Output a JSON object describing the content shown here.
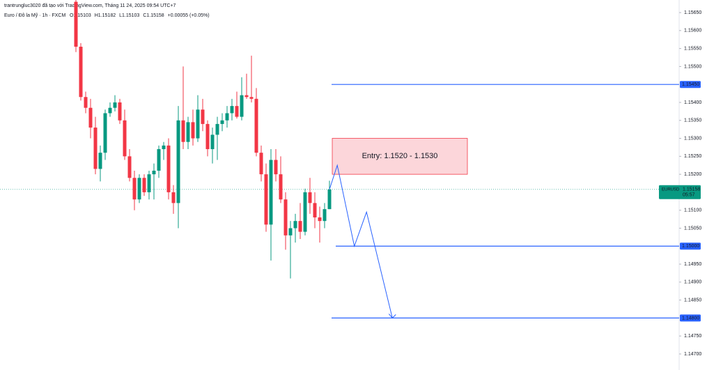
{
  "header": {
    "credit": "trantrungluc3020 đã tạo với TradingView.com, Tháng 11 24, 2025 09:54 UTC+7",
    "symbol": "Euro / Đô la Mỹ · 1h · FXCM",
    "ohlc": [
      "O1.15103",
      "H1.15182",
      "L1.15103",
      "C1.15158",
      "+0.00055 (+0.05%)"
    ]
  },
  "chart_data": {
    "type": "candlestick",
    "ylim": [
      1.14667,
      1.15685
    ],
    "yticks": [
      {
        "value": 1.1565,
        "label": "1.15650"
      },
      {
        "value": 1.156,
        "label": "1.15600"
      },
      {
        "value": 1.1555,
        "label": "1.15550"
      },
      {
        "value": 1.155,
        "label": "1.15500"
      },
      {
        "value": 1.154,
        "label": "1.15400"
      },
      {
        "value": 1.1535,
        "label": "1.15350"
      },
      {
        "value": 1.153,
        "label": "1.15300"
      },
      {
        "value": 1.1525,
        "label": "1.15250"
      },
      {
        "value": 1.152,
        "label": "1.15200"
      },
      {
        "value": 1.151,
        "label": "1.15100"
      },
      {
        "value": 1.1505,
        "label": "1.15050"
      },
      {
        "value": 1.1495,
        "label": "1.14950"
      },
      {
        "value": 1.149,
        "label": "1.14900"
      },
      {
        "value": 1.1485,
        "label": "1.14850"
      },
      {
        "value": 1.1475,
        "label": "1.14750"
      },
      {
        "value": 1.147,
        "label": "1.14700"
      }
    ],
    "up_color": "#089981",
    "down_color": "#f23645",
    "candles": [
      {
        "o": 1.1568,
        "h": 1.1569,
        "l": 1.1554,
        "c": 1.15555
      },
      {
        "o": 1.15555,
        "h": 1.15565,
        "l": 1.15405,
        "c": 1.15415
      },
      {
        "o": 1.15415,
        "h": 1.1543,
        "l": 1.1537,
        "c": 1.15385
      },
      {
        "o": 1.15385,
        "h": 1.1541,
        "l": 1.153,
        "c": 1.1533
      },
      {
        "o": 1.1533,
        "h": 1.1536,
        "l": 1.152,
        "c": 1.15215
      },
      {
        "o": 1.15215,
        "h": 1.1528,
        "l": 1.1518,
        "c": 1.1526
      },
      {
        "o": 1.1526,
        "h": 1.1538,
        "l": 1.1524,
        "c": 1.1537
      },
      {
        "o": 1.1537,
        "h": 1.154,
        "l": 1.1536,
        "c": 1.15385
      },
      {
        "o": 1.15385,
        "h": 1.1542,
        "l": 1.15375,
        "c": 1.154
      },
      {
        "o": 1.154,
        "h": 1.1541,
        "l": 1.1534,
        "c": 1.1535
      },
      {
        "o": 1.1535,
        "h": 1.1538,
        "l": 1.1524,
        "c": 1.1525
      },
      {
        "o": 1.1525,
        "h": 1.1527,
        "l": 1.1518,
        "c": 1.1519
      },
      {
        "o": 1.1519,
        "h": 1.1521,
        "l": 1.151,
        "c": 1.1513
      },
      {
        "o": 1.1513,
        "h": 1.152,
        "l": 1.1512,
        "c": 1.1519
      },
      {
        "o": 1.1519,
        "h": 1.152,
        "l": 1.1514,
        "c": 1.1515
      },
      {
        "o": 1.1515,
        "h": 1.1521,
        "l": 1.1513,
        "c": 1.152
      },
      {
        "o": 1.152,
        "h": 1.1523,
        "l": 1.1513,
        "c": 1.1521
      },
      {
        "o": 1.1521,
        "h": 1.1528,
        "l": 1.1519,
        "c": 1.1527
      },
      {
        "o": 1.1527,
        "h": 1.1529,
        "l": 1.1524,
        "c": 1.1528
      },
      {
        "o": 1.1528,
        "h": 1.153,
        "l": 1.1513,
        "c": 1.1515
      },
      {
        "o": 1.1515,
        "h": 1.1517,
        "l": 1.1509,
        "c": 1.1512
      },
      {
        "o": 1.1512,
        "h": 1.1539,
        "l": 1.1505,
        "c": 1.1535
      },
      {
        "o": 1.1535,
        "h": 1.155,
        "l": 1.1527,
        "c": 1.1529
      },
      {
        "o": 1.1529,
        "h": 1.1536,
        "l": 1.1527,
        "c": 1.15345
      },
      {
        "o": 1.15345,
        "h": 1.1538,
        "l": 1.1528,
        "c": 1.153
      },
      {
        "o": 1.153,
        "h": 1.1542,
        "l": 1.1529,
        "c": 1.1538
      },
      {
        "o": 1.1538,
        "h": 1.1541,
        "l": 1.1532,
        "c": 1.1534
      },
      {
        "o": 1.1534,
        "h": 1.1535,
        "l": 1.1525,
        "c": 1.1527
      },
      {
        "o": 1.1527,
        "h": 1.1533,
        "l": 1.1523,
        "c": 1.1531
      },
      {
        "o": 1.1531,
        "h": 1.1536,
        "l": 1.1524,
        "c": 1.1534
      },
      {
        "o": 1.1534,
        "h": 1.1537,
        "l": 1.1532,
        "c": 1.1535
      },
      {
        "o": 1.1535,
        "h": 1.1539,
        "l": 1.1533,
        "c": 1.1537
      },
      {
        "o": 1.1537,
        "h": 1.1541,
        "l": 1.1535,
        "c": 1.1539
      },
      {
        "o": 1.1539,
        "h": 1.1543,
        "l": 1.15355,
        "c": 1.1536
      },
      {
        "o": 1.1536,
        "h": 1.1547,
        "l": 1.1535,
        "c": 1.1542
      },
      {
        "o": 1.1542,
        "h": 1.1548,
        "l": 1.1541,
        "c": 1.15415
      },
      {
        "o": 1.15415,
        "h": 1.1553,
        "l": 1.154,
        "c": 1.1541
      },
      {
        "o": 1.1541,
        "h": 1.1544,
        "l": 1.1525,
        "c": 1.1526
      },
      {
        "o": 1.1526,
        "h": 1.1528,
        "l": 1.1518,
        "c": 1.152
      },
      {
        "o": 1.152,
        "h": 1.1523,
        "l": 1.1504,
        "c": 1.1506
      },
      {
        "o": 1.1506,
        "h": 1.1527,
        "l": 1.1496,
        "c": 1.1524
      },
      {
        "o": 1.1524,
        "h": 1.1527,
        "l": 1.1518,
        "c": 1.152
      },
      {
        "o": 1.152,
        "h": 1.1525,
        "l": 1.1512,
        "c": 1.1513
      },
      {
        "o": 1.1513,
        "h": 1.1515,
        "l": 1.1499,
        "c": 1.1503
      },
      {
        "o": 1.1503,
        "h": 1.1507,
        "l": 1.1491,
        "c": 1.1505
      },
      {
        "o": 1.1505,
        "h": 1.1509,
        "l": 1.1501,
        "c": 1.1507
      },
      {
        "o": 1.1507,
        "h": 1.1512,
        "l": 1.1502,
        "c": 1.1504
      },
      {
        "o": 1.1504,
        "h": 1.1516,
        "l": 1.1503,
        "c": 1.1515
      },
      {
        "o": 1.1515,
        "h": 1.1519,
        "l": 1.1509,
        "c": 1.1512
      },
      {
        "o": 1.1512,
        "h": 1.1515,
        "l": 1.1505,
        "c": 1.1508
      },
      {
        "o": 1.1508,
        "h": 1.1511,
        "l": 1.1501,
        "c": 1.1507
      },
      {
        "o": 1.1507,
        "h": 1.1512,
        "l": 1.1505,
        "c": 1.15103
      },
      {
        "o": 1.15103,
        "h": 1.15182,
        "l": 1.15103,
        "c": 1.15158
      }
    ],
    "last_price": {
      "value": 1.15158,
      "symbol": "EURUSD",
      "label": "1.15158",
      "countdown": "05:57"
    },
    "levels": [
      {
        "value": 1.1545,
        "label": "1.15450"
      },
      {
        "value": 1.15,
        "label": "1.15000"
      },
      {
        "value": 1.148,
        "label": "1.14800"
      }
    ],
    "level_color": "#2962ff",
    "entry_zone": {
      "label": "Entry: 1.1520 - 1.1530",
      "low": 1.152,
      "high": 1.153
    },
    "projection": {
      "x": [
        52,
        53.6,
        57.1,
        59.6,
        64.9
      ],
      "values": [
        1.15158,
        1.15225,
        1.15,
        1.15095,
        1.148
      ]
    }
  }
}
